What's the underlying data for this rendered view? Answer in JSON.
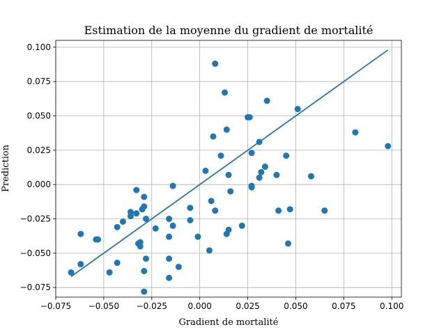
{
  "chart_data": {
    "type": "scatter",
    "title": "Estimation de la moyenne du gradient de mortalité",
    "xlabel": "Gradient de mortalité",
    "ylabel": "Prediction",
    "xlim": [
      -0.075,
      0.105
    ],
    "ylim": [
      -0.082,
      0.105
    ],
    "xticks": [
      -0.075,
      -0.05,
      -0.025,
      0.0,
      0.025,
      0.05,
      0.075,
      0.1
    ],
    "xtick_labels": [
      "−0.075",
      "−0.050",
      "−0.025",
      "0.000",
      "0.025",
      "0.050",
      "0.075",
      "0.100"
    ],
    "yticks": [
      -0.075,
      -0.05,
      -0.025,
      0.0,
      0.025,
      0.05,
      0.075,
      0.1
    ],
    "ytick_labels": [
      "−0.075",
      "−0.050",
      "−0.025",
      "0.000",
      "0.025",
      "0.050",
      "0.075",
      "0.100"
    ],
    "grid": true,
    "color": "#1f77b4",
    "series": [
      {
        "type": "scatter",
        "points": [
          [
            -0.067,
            -0.064
          ],
          [
            -0.062,
            -0.058
          ],
          [
            -0.062,
            -0.036
          ],
          [
            -0.054,
            -0.04
          ],
          [
            -0.053,
            -0.04
          ],
          [
            -0.047,
            -0.064
          ],
          [
            -0.043,
            -0.057
          ],
          [
            -0.043,
            -0.031
          ],
          [
            -0.04,
            -0.027
          ],
          [
            -0.036,
            -0.02
          ],
          [
            -0.036,
            -0.023
          ],
          [
            -0.033,
            -0.004
          ],
          [
            -0.033,
            -0.021
          ],
          [
            -0.032,
            -0.043
          ],
          [
            -0.031,
            -0.042
          ],
          [
            -0.031,
            -0.045
          ],
          [
            -0.03,
            -0.018
          ],
          [
            -0.029,
            -0.063
          ],
          [
            -0.029,
            -0.009
          ],
          [
            -0.029,
            -0.078
          ],
          [
            -0.029,
            -0.016
          ],
          [
            -0.028,
            -0.054
          ],
          [
            -0.028,
            -0.025
          ],
          [
            -0.023,
            -0.032
          ],
          [
            -0.016,
            -0.068
          ],
          [
            -0.016,
            -0.025
          ],
          [
            -0.016,
            -0.038
          ],
          [
            -0.016,
            -0.054
          ],
          [
            -0.014,
            -0.001
          ],
          [
            -0.014,
            -0.03
          ],
          [
            -0.011,
            -0.06
          ],
          [
            -0.005,
            -0.017
          ],
          [
            -0.005,
            -0.026
          ],
          [
            -0.001,
            -0.038
          ],
          [
            0.003,
            0.01
          ],
          [
            0.005,
            -0.048
          ],
          [
            0.006,
            -0.012
          ],
          [
            0.007,
            0.035
          ],
          [
            0.008,
            0.088
          ],
          [
            0.008,
            -0.019
          ],
          [
            0.011,
            0.021
          ],
          [
            0.013,
            0.067
          ],
          [
            0.014,
            0.04
          ],
          [
            0.014,
            -0.036
          ],
          [
            0.015,
            -0.033
          ],
          [
            0.015,
            0.007
          ],
          [
            0.016,
            -0.005
          ],
          [
            0.022,
            -0.03
          ],
          [
            0.025,
            0.049
          ],
          [
            0.026,
            0.049
          ],
          [
            0.027,
            0.023
          ],
          [
            0.027,
            -0.001
          ],
          [
            0.027,
            -0.002
          ],
          [
            0.031,
            0.031
          ],
          [
            0.031,
            0.005
          ],
          [
            0.032,
            0.009
          ],
          [
            0.034,
            0.013
          ],
          [
            0.035,
            0.061
          ],
          [
            0.04,
            0.007
          ],
          [
            0.041,
            -0.019
          ],
          [
            0.045,
            0.021
          ],
          [
            0.046,
            -0.043
          ],
          [
            0.047,
            -0.018
          ],
          [
            0.051,
            0.055
          ],
          [
            0.058,
            0.006
          ],
          [
            0.065,
            -0.019
          ],
          [
            0.081,
            0.038
          ],
          [
            0.098,
            0.028
          ]
        ]
      },
      {
        "type": "line",
        "x": [
          -0.067,
          0.098
        ],
        "y": [
          -0.067,
          0.098
        ]
      }
    ]
  }
}
